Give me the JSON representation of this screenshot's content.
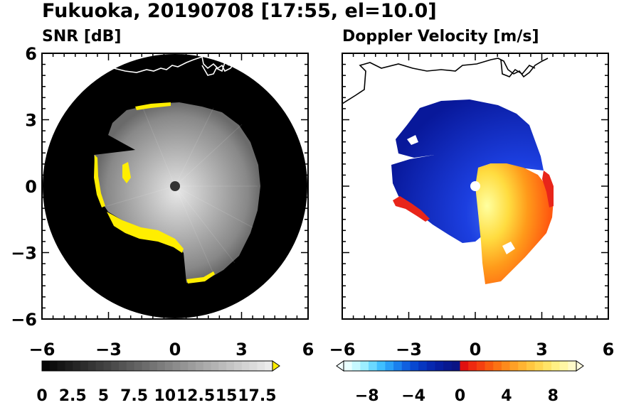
{
  "figure": {
    "title": "Fukuoka, 20190708 [17:55, el=10.0]"
  },
  "chart_data": [
    {
      "type": "heatmap",
      "subtitle": "SNR [dB]",
      "xlim": [
        -6,
        6
      ],
      "ylim": [
        -6,
        6
      ],
      "x_ticks": [
        "−6",
        "−3",
        "0",
        "3",
        "6"
      ],
      "y_ticks": [
        "6",
        "3",
        "0",
        "−3",
        "−6"
      ],
      "colorbar": {
        "min": 0,
        "max": 18.75,
        "extend": "max",
        "colormap": "grayscale-to-yellow",
        "tick_labels": [
          "0",
          "2.5",
          "5",
          "7.5",
          "10",
          "12.5",
          "15",
          "17.5"
        ]
      },
      "colors": {
        "no_data": "#000000",
        "low": "#1a1a1a",
        "high": "#f0f0f0",
        "over": "#ffee00",
        "coastline": "#ffffff"
      }
    },
    {
      "type": "heatmap",
      "subtitle": "Doppler Velocity [m/s]",
      "xlim": [
        -6,
        6
      ],
      "ylim": [
        -6,
        6
      ],
      "x_ticks": [
        "−6",
        "−3",
        "0",
        "3",
        "6"
      ],
      "y_ticks": [
        "6",
        "3",
        "0",
        "−3",
        "−6"
      ],
      "colorbar": {
        "min": -10,
        "max": 10,
        "extend": "both",
        "colormap": "blue-red-diverging",
        "tick_labels": [
          "−8",
          "−4",
          "0",
          "4",
          "8"
        ]
      },
      "colors": {
        "approaching": "#0a1fc0",
        "receding": "#ff6a10",
        "peak_receding": "#fff27a",
        "far_edge": "#e01a1a",
        "radar_site": "#ffffff",
        "coastline": "#000000"
      }
    }
  ]
}
